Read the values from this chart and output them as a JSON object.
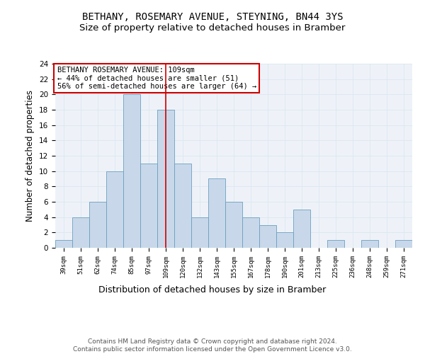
{
  "title1": "BETHANY, ROSEMARY AVENUE, STEYNING, BN44 3YS",
  "title2": "Size of property relative to detached houses in Bramber",
  "xlabel": "Distribution of detached houses by size in Bramber",
  "ylabel": "Number of detached properties",
  "categories": [
    "39sqm",
    "51sqm",
    "62sqm",
    "74sqm",
    "85sqm",
    "97sqm",
    "109sqm",
    "120sqm",
    "132sqm",
    "143sqm",
    "155sqm",
    "167sqm",
    "178sqm",
    "190sqm",
    "201sqm",
    "213sqm",
    "225sqm",
    "236sqm",
    "248sqm",
    "259sqm",
    "271sqm"
  ],
  "values": [
    1,
    4,
    6,
    10,
    20,
    11,
    18,
    11,
    4,
    9,
    6,
    4,
    3,
    2,
    5,
    0,
    1,
    0,
    1,
    0,
    1
  ],
  "bar_color": "#c8d8ea",
  "bar_edge_color": "#6a9fc0",
  "vline_x_index": 6,
  "vline_color": "#cc0000",
  "annotation_box_text": "BETHANY ROSEMARY AVENUE: 109sqm\n← 44% of detached houses are smaller (51)\n56% of semi-detached houses are larger (64) →",
  "annotation_fontsize": 7.5,
  "ylim": [
    0,
    24
  ],
  "yticks": [
    0,
    2,
    4,
    6,
    8,
    10,
    12,
    14,
    16,
    18,
    20,
    22,
    24
  ],
  "grid_color": "#dde8f2",
  "bg_color": "#eef2f8",
  "footer_text": "Contains HM Land Registry data © Crown copyright and database right 2024.\nContains public sector information licensed under the Open Government Licence v3.0.",
  "title1_fontsize": 10,
  "title2_fontsize": 9.5,
  "xlabel_fontsize": 9,
  "ylabel_fontsize": 8.5
}
